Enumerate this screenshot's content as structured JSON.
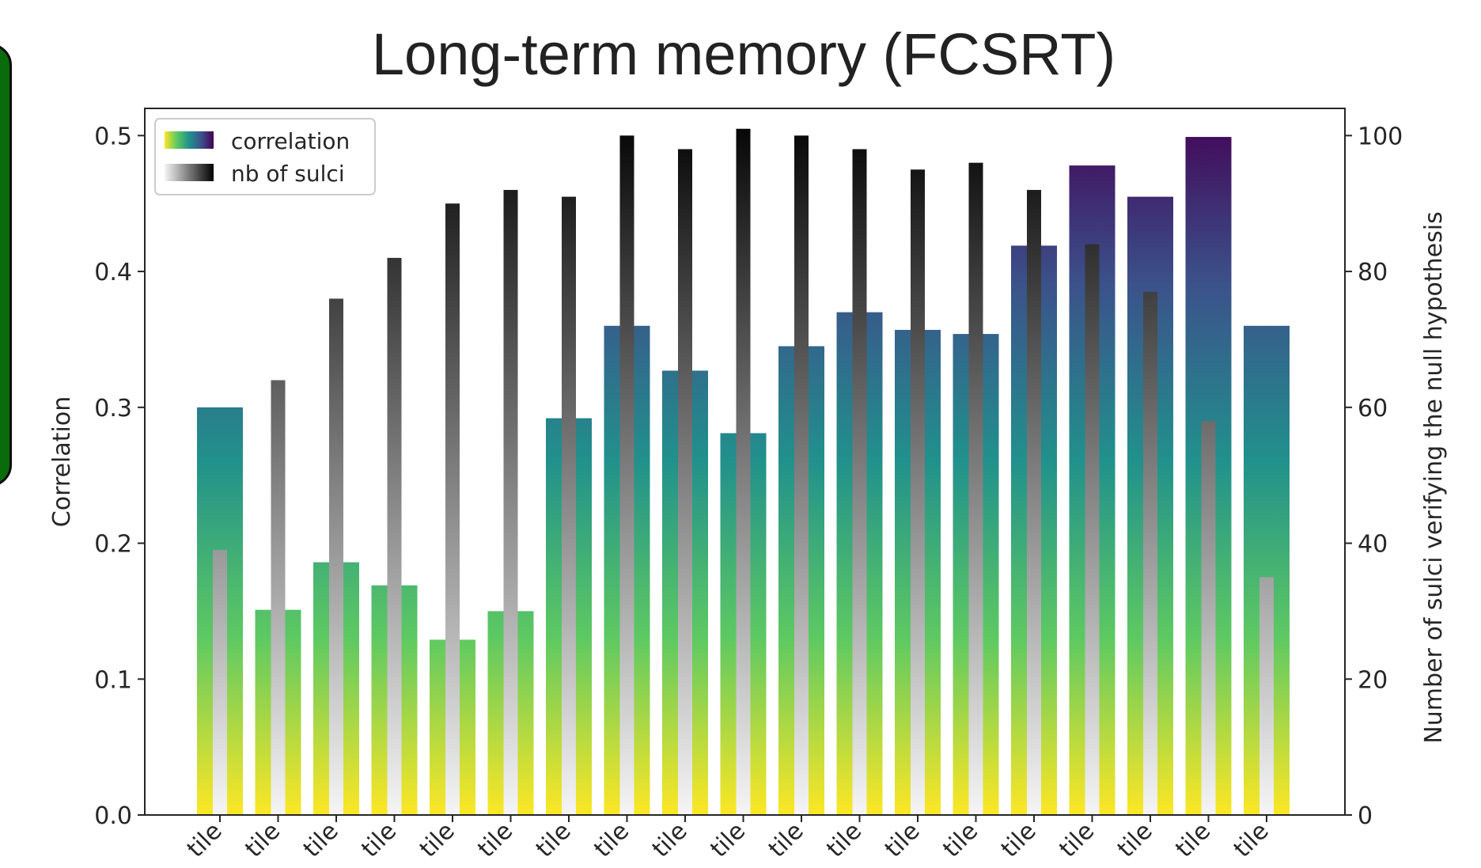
{
  "chart_data": {
    "type": "bar",
    "title": "Long-term memory (FCSRT)",
    "ylabel": "Correlation",
    "y2label": "Number of sulci verifying the null hypothesis",
    "ylim": [
      0,
      0.52
    ],
    "y2lim": [
      0,
      104
    ],
    "yticks": [
      "0.0",
      "0.1",
      "0.2",
      "0.3",
      "0.4",
      "0.5"
    ],
    "y2ticks": [
      "0",
      "20",
      "40",
      "60",
      "80",
      "100"
    ],
    "xtick_labels": [
      "tile",
      "tile",
      "tile",
      "tile",
      "tile",
      "tile",
      "tile",
      "tile",
      "tile",
      "tile",
      "tile",
      "tile",
      "tile",
      "tile",
      "tile",
      "tile",
      "tile",
      "tile",
      "tile"
    ],
    "legend_position": "top-left",
    "series": [
      {
        "name": "correlation",
        "axis": "left",
        "colormap": "viridis",
        "values": [
          0.3,
          0.151,
          0.186,
          0.169,
          0.129,
          0.15,
          0.292,
          0.36,
          0.327,
          0.281,
          0.345,
          0.37,
          0.357,
          0.354,
          0.419,
          0.478,
          0.455,
          0.499,
          0.36
        ]
      },
      {
        "name": "nb of sulci",
        "axis": "right",
        "colormap": "greys",
        "values": [
          39,
          64,
          76,
          82,
          90,
          92,
          91,
          100,
          98,
          101,
          100,
          98,
          95,
          96,
          92,
          84,
          77,
          58,
          35
        ]
      }
    ],
    "colors": {
      "viridis": [
        "#fde725",
        "#5ec962",
        "#21918c",
        "#3b528b",
        "#440154"
      ],
      "greys": [
        "#f5f5f5",
        "#000000"
      ],
      "axis": "#262626"
    }
  }
}
